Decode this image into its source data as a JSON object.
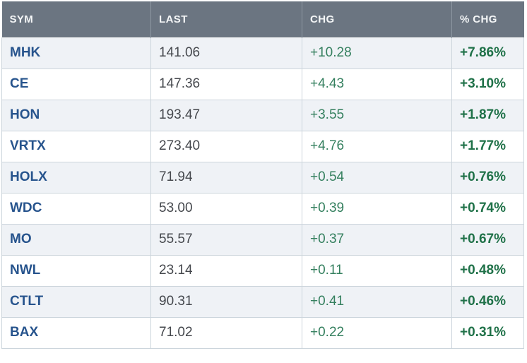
{
  "colors": {
    "header_bg": "#6b7581",
    "header_text": "#f4f6f7",
    "row_alt_bg": "#eff2f6",
    "grid_border": "#ccd5dc",
    "symbol_blue": "#27548d",
    "last_gray": "#45484d",
    "change_green": "#35805f",
    "percent_green": "#1f7148"
  },
  "table": {
    "columns": [
      {
        "key": "sym",
        "label": "SYM"
      },
      {
        "key": "last",
        "label": "LAST"
      },
      {
        "key": "chg",
        "label": "CHG"
      },
      {
        "key": "pct",
        "label": "% CHG"
      }
    ],
    "rows": [
      {
        "sym": "MHK",
        "last": "141.06",
        "chg": "+10.28",
        "pct": "+7.86%"
      },
      {
        "sym": "CE",
        "last": "147.36",
        "chg": "+4.43",
        "pct": "+3.10%"
      },
      {
        "sym": "HON",
        "last": "193.47",
        "chg": "+3.55",
        "pct": "+1.87%"
      },
      {
        "sym": "VRTX",
        "last": "273.40",
        "chg": "+4.76",
        "pct": "+1.77%"
      },
      {
        "sym": "HOLX",
        "last": "71.94",
        "chg": "+0.54",
        "pct": "+0.76%"
      },
      {
        "sym": "WDC",
        "last": "53.00",
        "chg": "+0.39",
        "pct": "+0.74%"
      },
      {
        "sym": "MO",
        "last": "55.57",
        "chg": "+0.37",
        "pct": "+0.67%"
      },
      {
        "sym": "NWL",
        "last": "23.14",
        "chg": "+0.11",
        "pct": "+0.48%"
      },
      {
        "sym": "CTLT",
        "last": "90.31",
        "chg": "+0.41",
        "pct": "+0.46%"
      },
      {
        "sym": "BAX",
        "last": "71.02",
        "chg": "+0.22",
        "pct": "+0.31%"
      }
    ]
  }
}
